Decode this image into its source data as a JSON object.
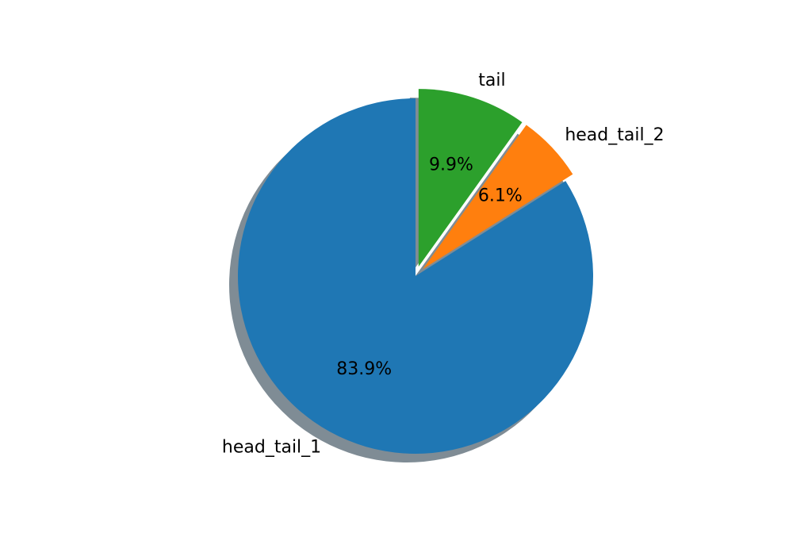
{
  "chart_data": {
    "type": "pie",
    "categories": [
      "head_tail_1",
      "head_tail_2",
      "tail"
    ],
    "values": [
      83.9,
      6.1,
      9.9
    ],
    "percent_labels": [
      "83.9%",
      "6.1%",
      "9.9%"
    ],
    "colors": [
      "#1f77b4",
      "#ff7f0e",
      "#2ca02c"
    ],
    "shadow_color": "#7f8c95",
    "exploded": [
      "head_tail_2",
      "tail"
    ],
    "start_angle_deg": 90,
    "direction": "counterclockwise",
    "shadow": true,
    "legend": "none",
    "title": ""
  }
}
